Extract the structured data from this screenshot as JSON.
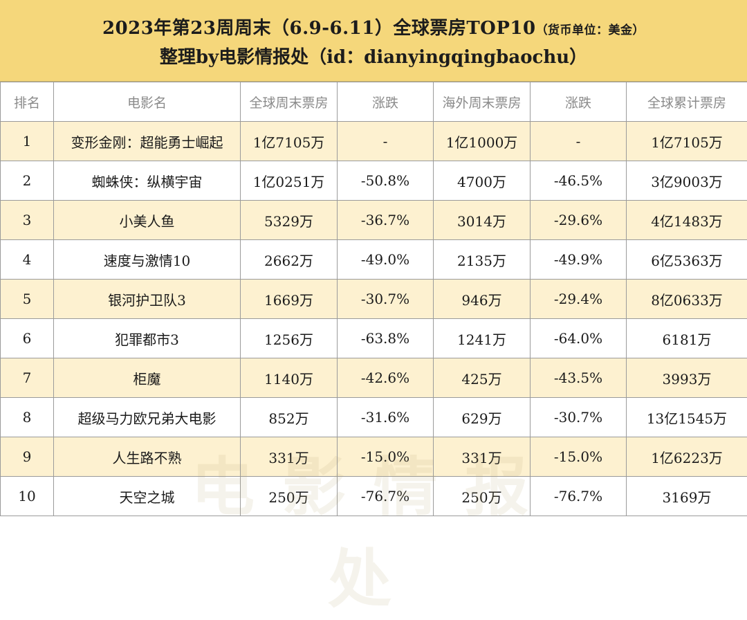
{
  "header": {
    "title": "2023年第23周周末（6.9-6.11）全球票房TOP10",
    "unit": "（货币单位：美金）",
    "subtitle": "整理by电影情报处（id：dianyingqingbaochu）"
  },
  "table": {
    "columns": [
      "排名",
      "电影名",
      "全球周末票房",
      "涨跌",
      "海外周末票房",
      "涨跌",
      "全球累计票房"
    ],
    "rows": [
      {
        "rank": "1",
        "title": "变形金刚：超能勇士崛起",
        "global_weekend": "1亿7105万",
        "global_change": "-",
        "overseas_weekend": "1亿1000万",
        "overseas_change": "-",
        "global_total": "1亿7105万"
      },
      {
        "rank": "2",
        "title": "蜘蛛侠：纵横宇宙",
        "global_weekend": "1亿0251万",
        "global_change": "-50.8%",
        "overseas_weekend": "4700万",
        "overseas_change": "-46.5%",
        "global_total": "3亿9003万"
      },
      {
        "rank": "3",
        "title": "小美人鱼",
        "global_weekend": "5329万",
        "global_change": "-36.7%",
        "overseas_weekend": "3014万",
        "overseas_change": "-29.6%",
        "global_total": "4亿1483万"
      },
      {
        "rank": "4",
        "title": "速度与激情10",
        "global_weekend": "2662万",
        "global_change": "-49.0%",
        "overseas_weekend": "2135万",
        "overseas_change": "-49.9%",
        "global_total": "6亿5363万"
      },
      {
        "rank": "5",
        "title": "银河护卫队3",
        "global_weekend": "1669万",
        "global_change": "-30.7%",
        "overseas_weekend": "946万",
        "overseas_change": "-29.4%",
        "global_total": "8亿0633万"
      },
      {
        "rank": "6",
        "title": "犯罪都市3",
        "global_weekend": "1256万",
        "global_change": "-63.8%",
        "overseas_weekend": "1241万",
        "overseas_change": "-64.0%",
        "global_total": "6181万"
      },
      {
        "rank": "7",
        "title": "柜魔",
        "global_weekend": "1140万",
        "global_change": "-42.6%",
        "overseas_weekend": "425万",
        "overseas_change": "-43.5%",
        "global_total": "3993万"
      },
      {
        "rank": "8",
        "title": "超级马力欧兄弟大电影",
        "global_weekend": "852万",
        "global_change": "-31.6%",
        "overseas_weekend": "629万",
        "overseas_change": "-30.7%",
        "global_total": "13亿1545万"
      },
      {
        "rank": "9",
        "title": "人生路不熟",
        "global_weekend": "331万",
        "global_change": "-15.0%",
        "overseas_weekend": "331万",
        "overseas_change": "-15.0%",
        "global_total": "1亿6223万"
      },
      {
        "rank": "10",
        "title": "天空之城",
        "global_weekend": "250万",
        "global_change": "-76.7%",
        "overseas_weekend": "250万",
        "overseas_change": "-76.7%",
        "global_total": "3169万"
      }
    ]
  },
  "watermark": {
    "text": "电影情报处"
  },
  "colors": {
    "header_bg": "#f5d77b",
    "odd_row_bg": "#fdf1d0",
    "negative_text": "#e03131",
    "header_text": "#8a8a8a"
  }
}
